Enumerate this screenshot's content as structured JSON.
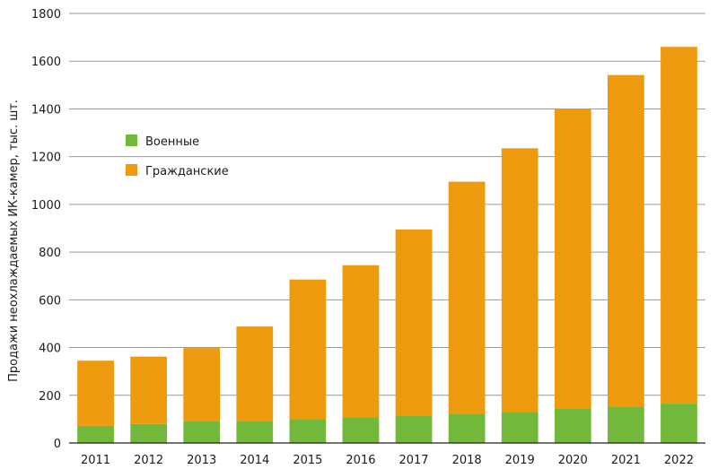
{
  "chart_data": {
    "type": "bar",
    "stacked": true,
    "categories": [
      "2011",
      "2012",
      "2013",
      "2014",
      "2015",
      "2016",
      "2017",
      "2018",
      "2019",
      "2020",
      "2021",
      "2022"
    ],
    "series": [
      {
        "name": "Военные",
        "color": "#72b83a",
        "values": [
          72,
          80,
          93,
          93,
          100,
          107,
          115,
          122,
          130,
          143,
          152,
          165
        ]
      },
      {
        "name": "Гражданские",
        "color": "#ee9a0e",
        "values": [
          273,
          282,
          305,
          395,
          585,
          638,
          780,
          973,
          1105,
          1257,
          1390,
          1495
        ]
      }
    ],
    "title": "",
    "xlabel": "",
    "ylabel": "Продажи неохлаждаемых ИК-камер, тыс. шт.",
    "ylim": [
      0,
      1800
    ],
    "yticks": [
      0,
      200,
      400,
      600,
      800,
      1000,
      1200,
      1400,
      1600,
      1800
    ],
    "grid": true,
    "legend_position": "upper-left"
  }
}
